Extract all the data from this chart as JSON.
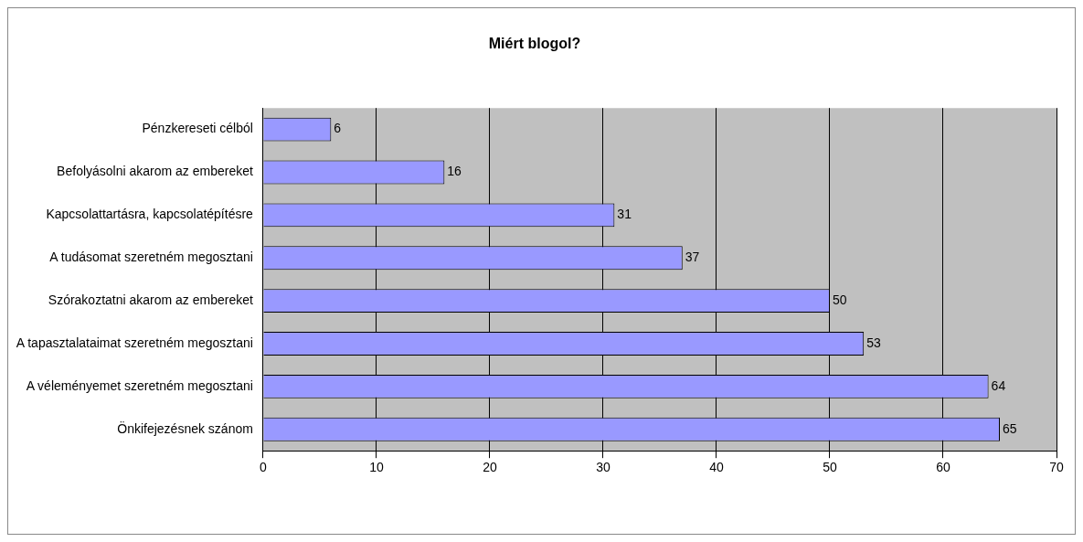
{
  "chart_data": {
    "type": "bar",
    "orientation": "horizontal",
    "title": "Miért blogol?",
    "categories": [
      "Pénzkereseti célból",
      "Befolyásolni akarom az embereket",
      "Kapcsolattartásra, kapcsolatépítésre",
      "A tudásomat szeretném megosztani",
      "Szórakoztatni akarom az embereket",
      "A tapasztalataimat szeretném megosztani",
      "A véleményemet szeretném megosztani",
      "Önkifejezésnek szánom"
    ],
    "values": [
      6,
      16,
      31,
      37,
      50,
      53,
      64,
      65
    ],
    "color": "#9999ff",
    "xlim": [
      0,
      70
    ],
    "xticks": [
      0,
      10,
      20,
      30,
      40,
      50,
      60,
      70
    ],
    "grid": "x",
    "legend": false,
    "data_labels": true
  }
}
